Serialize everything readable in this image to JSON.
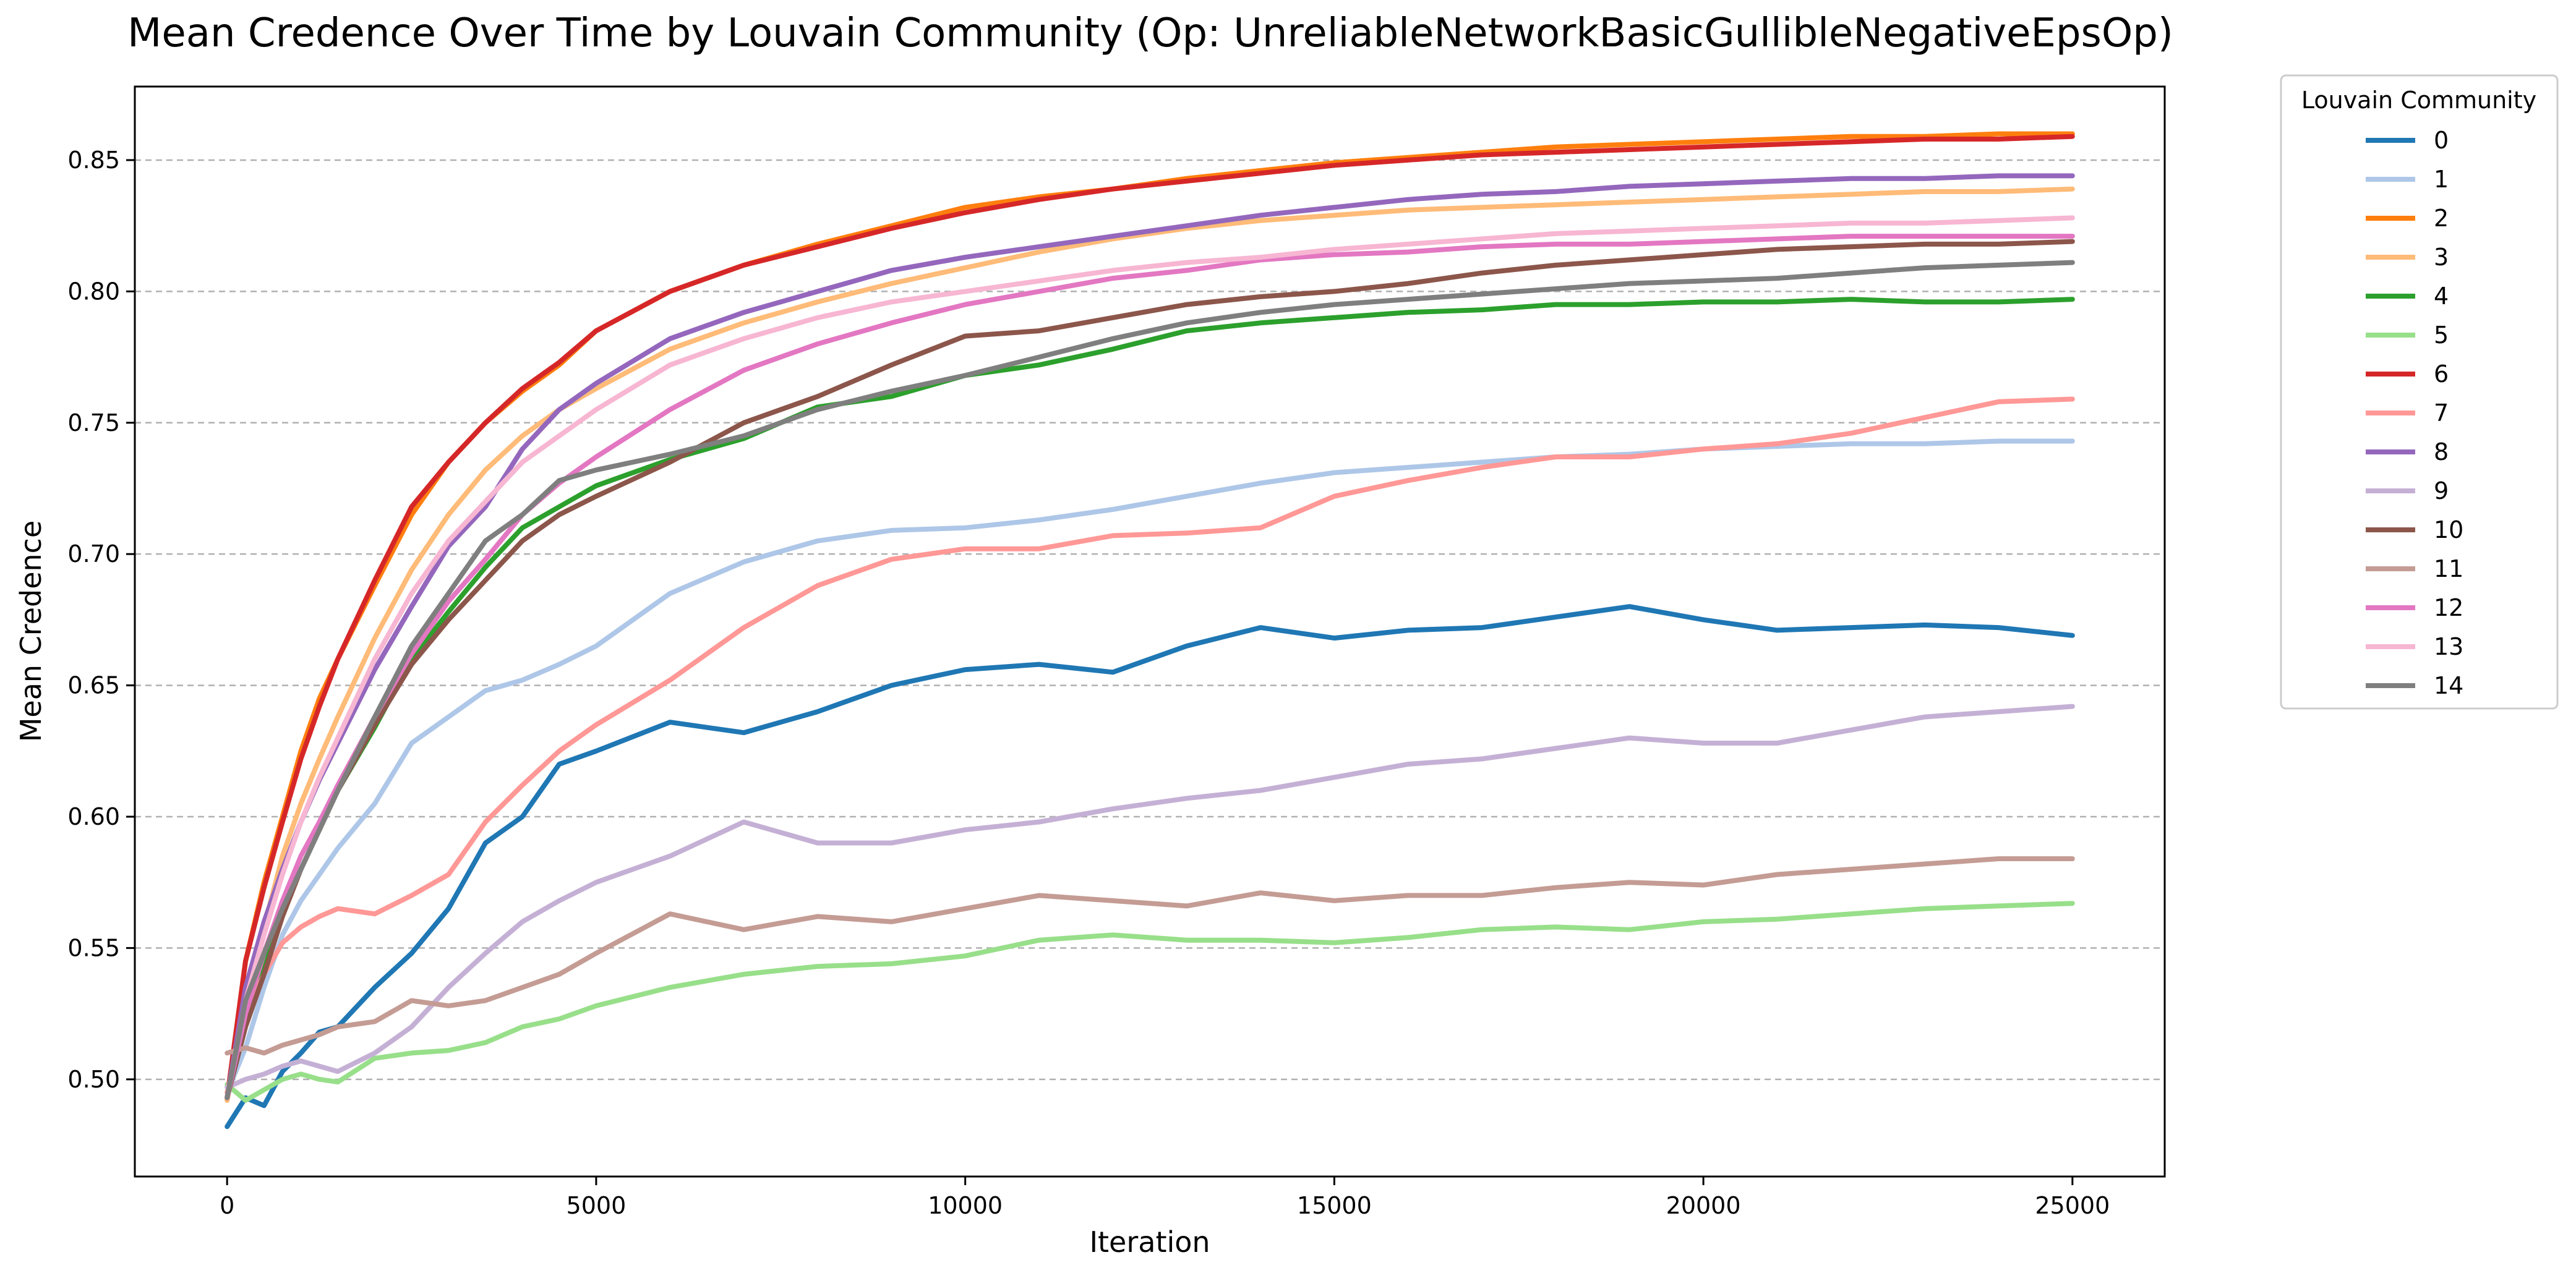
{
  "chart_data": {
    "type": "line",
    "title": "Mean Credence Over Time by Louvain Community (Op: UnreliableNetworkBasicGullibleNegativeEpsOp)",
    "xlabel": "Iteration",
    "ylabel": "Mean Credence",
    "xlim": [
      -1250,
      26250
    ],
    "ylim": [
      0.463,
      0.878
    ],
    "x_ticks": [
      0,
      5000,
      10000,
      15000,
      20000,
      25000
    ],
    "x_tick_labels": [
      "0",
      "5000",
      "10000",
      "15000",
      "20000",
      "25000"
    ],
    "y_ticks": [
      0.5,
      0.55,
      0.6,
      0.65,
      0.7,
      0.75,
      0.8,
      0.85
    ],
    "y_tick_labels": [
      "0.50",
      "0.55",
      "0.60",
      "0.65",
      "0.70",
      "0.75",
      "0.80",
      "0.85"
    ],
    "grid": {
      "y": true,
      "x": false,
      "style": "dashed"
    },
    "legend": {
      "title": "Louvain Community",
      "placement": "outside-right-top"
    },
    "x": [
      0,
      250,
      500,
      750,
      1000,
      1250,
      1500,
      2000,
      2500,
      3000,
      3500,
      4000,
      4500,
      5000,
      6000,
      7000,
      8000,
      9000,
      10000,
      11000,
      12000,
      13000,
      14000,
      15000,
      16000,
      17000,
      18000,
      19000,
      20000,
      21000,
      22000,
      23000,
      24000,
      25000
    ],
    "series": [
      {
        "name": "0",
        "color": "#1f77b4",
        "values": [
          0.482,
          0.493,
          0.49,
          0.503,
          0.51,
          0.518,
          0.52,
          0.535,
          0.548,
          0.565,
          0.59,
          0.6,
          0.62,
          0.625,
          0.636,
          0.632,
          0.64,
          0.65,
          0.656,
          0.658,
          0.655,
          0.665,
          0.672,
          0.668,
          0.671,
          0.672,
          0.676,
          0.68,
          0.675,
          0.671,
          0.672,
          0.673,
          0.672,
          0.669
        ]
      },
      {
        "name": "1",
        "color": "#aec7e8",
        "values": [
          0.495,
          0.512,
          0.535,
          0.555,
          0.568,
          0.578,
          0.588,
          0.605,
          0.628,
          0.638,
          0.648,
          0.652,
          0.658,
          0.665,
          0.685,
          0.697,
          0.705,
          0.709,
          0.71,
          0.713,
          0.717,
          0.722,
          0.727,
          0.731,
          0.733,
          0.735,
          0.737,
          0.738,
          0.74,
          0.741,
          0.742,
          0.742,
          0.743,
          0.743
        ]
      },
      {
        "name": "2",
        "color": "#ff7f0e",
        "values": [
          0.492,
          0.545,
          0.575,
          0.6,
          0.625,
          0.645,
          0.66,
          0.688,
          0.715,
          0.735,
          0.75,
          0.762,
          0.772,
          0.785,
          0.8,
          0.81,
          0.818,
          0.825,
          0.832,
          0.836,
          0.839,
          0.843,
          0.846,
          0.849,
          0.851,
          0.853,
          0.855,
          0.856,
          0.857,
          0.858,
          0.859,
          0.859,
          0.86,
          0.86
        ]
      },
      {
        "name": "3",
        "color": "#ffbb78",
        "values": [
          0.492,
          0.53,
          0.558,
          0.585,
          0.605,
          0.622,
          0.638,
          0.668,
          0.694,
          0.715,
          0.732,
          0.745,
          0.755,
          0.763,
          0.778,
          0.788,
          0.796,
          0.803,
          0.809,
          0.815,
          0.82,
          0.824,
          0.827,
          0.829,
          0.831,
          0.832,
          0.833,
          0.834,
          0.835,
          0.836,
          0.837,
          0.838,
          0.838,
          0.839
        ]
      },
      {
        "name": "4",
        "color": "#2ca02c",
        "values": [
          0.493,
          0.525,
          0.545,
          0.565,
          0.58,
          0.595,
          0.61,
          0.634,
          0.66,
          0.678,
          0.695,
          0.71,
          0.718,
          0.726,
          0.736,
          0.744,
          0.756,
          0.76,
          0.768,
          0.772,
          0.778,
          0.785,
          0.788,
          0.79,
          0.792,
          0.793,
          0.795,
          0.795,
          0.796,
          0.796,
          0.797,
          0.796,
          0.796,
          0.797
        ]
      },
      {
        "name": "5",
        "color": "#98df8a",
        "values": [
          0.498,
          0.492,
          0.496,
          0.5,
          0.502,
          0.5,
          0.499,
          0.508,
          0.51,
          0.511,
          0.514,
          0.52,
          0.523,
          0.528,
          0.535,
          0.54,
          0.543,
          0.544,
          0.547,
          0.553,
          0.555,
          0.553,
          0.553,
          0.552,
          0.554,
          0.557,
          0.558,
          0.557,
          0.56,
          0.561,
          0.563,
          0.565,
          0.566,
          0.567
        ]
      },
      {
        "name": "6",
        "color": "#d62728",
        "values": [
          0.493,
          0.545,
          0.573,
          0.598,
          0.622,
          0.642,
          0.66,
          0.69,
          0.718,
          0.735,
          0.75,
          0.763,
          0.773,
          0.785,
          0.8,
          0.81,
          0.817,
          0.824,
          0.83,
          0.835,
          0.839,
          0.842,
          0.845,
          0.848,
          0.85,
          0.852,
          0.853,
          0.854,
          0.855,
          0.856,
          0.857,
          0.858,
          0.858,
          0.859
        ]
      },
      {
        "name": "7",
        "color": "#ff9896",
        "values": [
          0.495,
          0.525,
          0.54,
          0.552,
          0.558,
          0.562,
          0.565,
          0.563,
          0.57,
          0.578,
          0.598,
          0.612,
          0.625,
          0.635,
          0.652,
          0.672,
          0.688,
          0.698,
          0.702,
          0.702,
          0.707,
          0.708,
          0.71,
          0.722,
          0.728,
          0.733,
          0.737,
          0.737,
          0.74,
          0.742,
          0.746,
          0.752,
          0.758,
          0.759
        ]
      },
      {
        "name": "8",
        "color": "#9467bd",
        "values": [
          0.493,
          0.535,
          0.56,
          0.58,
          0.598,
          0.614,
          0.628,
          0.656,
          0.68,
          0.703,
          0.718,
          0.74,
          0.755,
          0.765,
          0.782,
          0.792,
          0.8,
          0.808,
          0.813,
          0.817,
          0.821,
          0.825,
          0.829,
          0.832,
          0.835,
          0.837,
          0.838,
          0.84,
          0.841,
          0.842,
          0.843,
          0.843,
          0.844,
          0.844
        ]
      },
      {
        "name": "9",
        "color": "#c5b0d5",
        "values": [
          0.497,
          0.5,
          0.502,
          0.505,
          0.507,
          0.505,
          0.503,
          0.51,
          0.52,
          0.535,
          0.548,
          0.56,
          0.568,
          0.575,
          0.585,
          0.598,
          0.59,
          0.59,
          0.595,
          0.598,
          0.603,
          0.607,
          0.61,
          0.615,
          0.62,
          0.622,
          0.626,
          0.63,
          0.628,
          0.628,
          0.633,
          0.638,
          0.64,
          0.642
        ]
      },
      {
        "name": "10",
        "color": "#8c564b",
        "values": [
          0.493,
          0.52,
          0.54,
          0.562,
          0.58,
          0.595,
          0.61,
          0.635,
          0.658,
          0.675,
          0.69,
          0.705,
          0.715,
          0.722,
          0.735,
          0.75,
          0.76,
          0.772,
          0.783,
          0.785,
          0.79,
          0.795,
          0.798,
          0.8,
          0.803,
          0.807,
          0.81,
          0.812,
          0.814,
          0.816,
          0.817,
          0.818,
          0.818,
          0.819
        ]
      },
      {
        "name": "11",
        "color": "#c49c94",
        "values": [
          0.51,
          0.512,
          0.51,
          0.513,
          0.515,
          0.517,
          0.52,
          0.522,
          0.53,
          0.528,
          0.53,
          0.535,
          0.54,
          0.548,
          0.563,
          0.557,
          0.562,
          0.56,
          0.565,
          0.57,
          0.568,
          0.566,
          0.571,
          0.568,
          0.57,
          0.57,
          0.573,
          0.575,
          0.574,
          0.578,
          0.58,
          0.582,
          0.584,
          0.584
        ]
      },
      {
        "name": "12",
        "color": "#e377c2",
        "values": [
          0.493,
          0.525,
          0.548,
          0.568,
          0.585,
          0.598,
          0.612,
          0.638,
          0.662,
          0.682,
          0.698,
          0.715,
          0.727,
          0.737,
          0.755,
          0.77,
          0.78,
          0.788,
          0.795,
          0.8,
          0.805,
          0.808,
          0.812,
          0.814,
          0.815,
          0.817,
          0.818,
          0.818,
          0.819,
          0.82,
          0.821,
          0.821,
          0.821,
          0.821
        ]
      },
      {
        "name": "13",
        "color": "#f7b6d2",
        "values": [
          0.493,
          0.53,
          0.555,
          0.578,
          0.598,
          0.615,
          0.63,
          0.66,
          0.685,
          0.705,
          0.72,
          0.735,
          0.745,
          0.755,
          0.772,
          0.782,
          0.79,
          0.796,
          0.8,
          0.804,
          0.808,
          0.811,
          0.813,
          0.816,
          0.818,
          0.82,
          0.822,
          0.823,
          0.824,
          0.825,
          0.826,
          0.826,
          0.827,
          0.828
        ]
      },
      {
        "name": "14",
        "color": "#7f7f7f",
        "values": [
          0.493,
          0.53,
          0.548,
          0.565,
          0.58,
          0.595,
          0.61,
          0.638,
          0.665,
          0.685,
          0.705,
          0.715,
          0.728,
          0.732,
          0.738,
          0.745,
          0.755,
          0.762,
          0.768,
          0.775,
          0.782,
          0.788,
          0.792,
          0.795,
          0.797,
          0.799,
          0.801,
          0.803,
          0.804,
          0.805,
          0.807,
          0.809,
          0.81,
          0.811
        ]
      }
    ]
  }
}
